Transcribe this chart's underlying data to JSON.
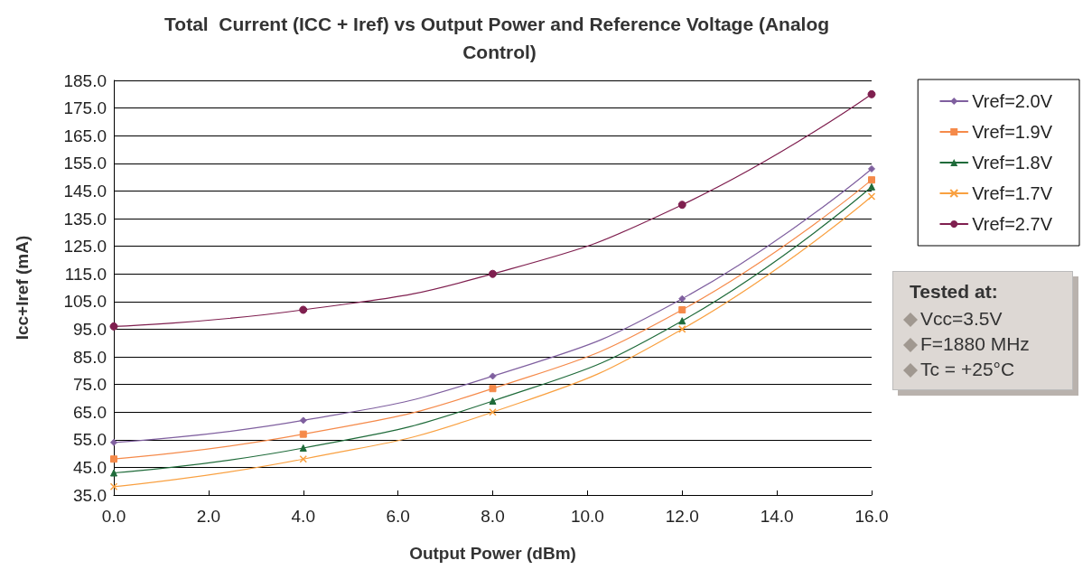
{
  "chart_data": {
    "type": "line",
    "title": "Total  Current (ICC + Iref) vs Output Power and Reference Voltage (Analog Control)",
    "xlabel": "Output Power (dBm)",
    "ylabel": "Icc+Iref (mA)",
    "x": [
      0,
      4,
      8,
      12,
      16
    ],
    "series": [
      {
        "name": "Vref=2.0V",
        "color": "#7f5f9f",
        "marker": "diamond",
        "values": [
          54,
          62,
          78,
          106,
          153
        ]
      },
      {
        "name": "Vref=1.9V",
        "color": "#f58a4a",
        "marker": "square",
        "values": [
          48,
          57,
          73.5,
          102,
          149
        ]
      },
      {
        "name": "Vref=1.8V",
        "color": "#1f6b3a",
        "marker": "triangle",
        "values": [
          43,
          52,
          69,
          98,
          146.5
        ]
      },
      {
        "name": "Vref=1.7V",
        "color": "#f9a040",
        "marker": "cross",
        "values": [
          38,
          48,
          65,
          95,
          143
        ]
      },
      {
        "name": "Vref=2.7V",
        "color": "#7f1f4f",
        "marker": "circle",
        "values": [
          96,
          102,
          115,
          140,
          180
        ]
      }
    ],
    "xlim": [
      0,
      16
    ],
    "xticks": [
      {
        "value": 0,
        "label": "0.0"
      },
      {
        "value": 2,
        "label": "2.0"
      },
      {
        "value": 4,
        "label": "4.0"
      },
      {
        "value": 6,
        "label": "6.0"
      },
      {
        "value": 8,
        "label": "8.0"
      },
      {
        "value": 10,
        "label": "10.0"
      },
      {
        "value": 12,
        "label": "12.0"
      },
      {
        "value": 14,
        "label": "14.0"
      },
      {
        "value": 16,
        "label": "16.0"
      }
    ],
    "ylim": [
      35,
      185
    ],
    "yticks": [
      {
        "value": 35,
        "label": "35.0"
      },
      {
        "value": 45,
        "label": "45.0"
      },
      {
        "value": 55,
        "label": "55.0"
      },
      {
        "value": 65,
        "label": "65.0"
      },
      {
        "value": 75,
        "label": "75.0"
      },
      {
        "value": 85,
        "label": "85.0"
      },
      {
        "value": 95,
        "label": "95.0"
      },
      {
        "value": 105,
        "label": "105.0"
      },
      {
        "value": 115,
        "label": "115.0"
      },
      {
        "value": 125,
        "label": "125.0"
      },
      {
        "value": 135,
        "label": "135.0"
      },
      {
        "value": 145,
        "label": "145.0"
      },
      {
        "value": 155,
        "label": "155.0"
      },
      {
        "value": 165,
        "label": "165.0"
      },
      {
        "value": 175,
        "label": "175.0"
      },
      {
        "value": 185,
        "label": "185.0"
      }
    ],
    "grid": "y",
    "legend": "right",
    "annotations": [
      "Tested at:",
      "Vcc=3.5V",
      "F=1880 MHz",
      "Tc = +25°C"
    ]
  }
}
